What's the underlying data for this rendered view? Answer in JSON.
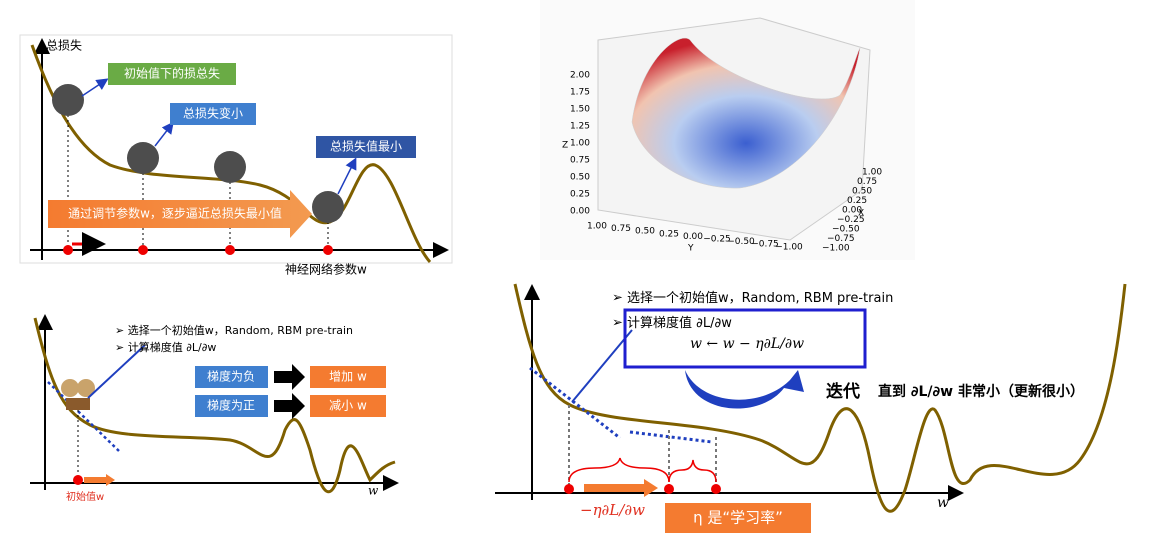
{
  "panel_top_left": {
    "y_axis_label": "总损失",
    "x_axis_label": "神经网络参数w",
    "callouts": [
      "初始值下的损总失",
      "总损失变小",
      "总损失值最小"
    ],
    "banner": "通过调节参数w，逐步逼近总损失最小值"
  },
  "panel_surface": {
    "z_label": "Z",
    "x_label": "X",
    "y_label": "Y",
    "z_ticks": [
      "2.00",
      "1.75",
      "1.50",
      "1.25",
      "1.00",
      "0.75",
      "0.50",
      "0.25",
      "0.00"
    ],
    "x_ticks": [
      "1.00",
      "0.75",
      "0.50",
      "0.25",
      "0.00",
      "−0.25",
      "−0.50",
      "−0.75",
      "−1.00"
    ],
    "y_ticks": [
      "1.00",
      "0.75",
      "0.50",
      "0.25",
      "0.00",
      "−0.25",
      "−0.50",
      "−0.75",
      "−1.00"
    ]
  },
  "panel_bottom_left": {
    "bullets": [
      "选择一个初始值w，Random, RBM pre-train",
      "计算梯度值 ∂L/∂w"
    ],
    "rules": [
      {
        "condition": "梯度为负",
        "action": "增加 w"
      },
      {
        "condition": "梯度为正",
        "action": "减小 w"
      }
    ],
    "start_label": "初始值w",
    "x_axis_label": "w"
  },
  "panel_bottom_right": {
    "bullets": [
      "选择一个初始值w，Random, RBM pre-train",
      "计算梯度值 ∂L/∂w"
    ],
    "update_rule": "w ← w − η∂L/∂w",
    "iterate": "迭代",
    "until": "直到 ∂L/∂w 非常小（更新很小）",
    "step_label": "−η∂L/∂w",
    "rate_note": "η 是“学习率”",
    "x_axis_label": "w"
  }
}
